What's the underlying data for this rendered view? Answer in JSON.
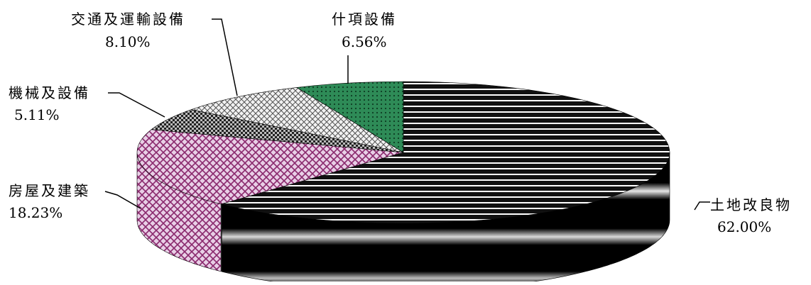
{
  "chart_data": {
    "type": "pie",
    "title": "",
    "style": "3d-exploded-none",
    "slices": [
      {
        "label": "土地改良物",
        "value": 62.0,
        "value_label": "62.00%",
        "color": "#111111",
        "pattern": "horizontal-stripes"
      },
      {
        "label": "房屋及建築",
        "value": 18.23,
        "value_label": "18.23%",
        "color": "#c9a6c6",
        "pattern": "diamond-lattice"
      },
      {
        "label": "機械及設備",
        "value": 5.11,
        "value_label": "5.11%",
        "color": "#3a3a3a",
        "pattern": "dense-checker"
      },
      {
        "label": "交通及運輸設備",
        "value": 8.1,
        "value_label": "8.10%",
        "color": "#e6e6e6",
        "pattern": "light-crosshatch"
      },
      {
        "label": "什項設備",
        "value": 6.56,
        "value_label": "6.56%",
        "color": "#2e8b57",
        "pattern": "dots"
      }
    ]
  }
}
